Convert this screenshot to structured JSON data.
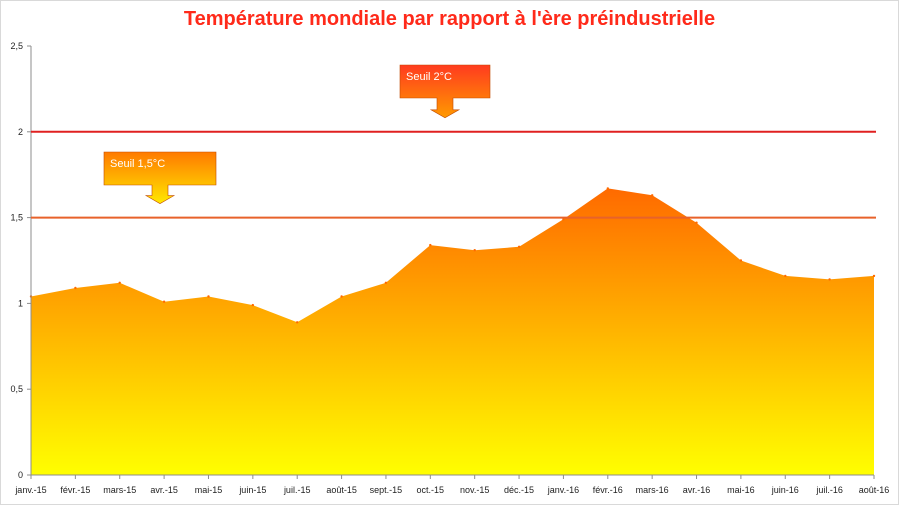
{
  "chart_data": {
    "type": "area",
    "title": "Température mondiale par rapport à l'ère préindustrielle",
    "categories": [
      "janv.-15",
      "févr.-15",
      "mars-15",
      "avr.-15",
      "mai-15",
      "juin-15",
      "juil.-15",
      "août-15",
      "sept.-15",
      "oct.-15",
      "nov.-15",
      "déc.-15",
      "janv.-16",
      "févr.-16",
      "mars-16",
      "avr.-16",
      "mai-16",
      "juin-16",
      "juil.-16",
      "août-16"
    ],
    "values": [
      1.04,
      1.09,
      1.12,
      1.01,
      1.04,
      0.99,
      0.89,
      1.04,
      1.12,
      1.34,
      1.31,
      1.33,
      1.49,
      1.67,
      1.63,
      1.47,
      1.25,
      1.16,
      1.14,
      1.16
    ],
    "ylim": [
      0,
      2.5
    ],
    "yticks": [
      "0",
      "0,5",
      "1",
      "1,5",
      "2",
      "2,5"
    ],
    "thresholds": [
      {
        "label": "Seuil 1,5°C",
        "value": 1.5,
        "color": "#e8622a"
      },
      {
        "label": "Seuil 2°C",
        "value": 2.0,
        "color": "#e02020"
      }
    ],
    "fill_gradient": {
      "top": "#ff6a00",
      "bottom": "#ffff00"
    },
    "grid": false,
    "legend": "none"
  }
}
